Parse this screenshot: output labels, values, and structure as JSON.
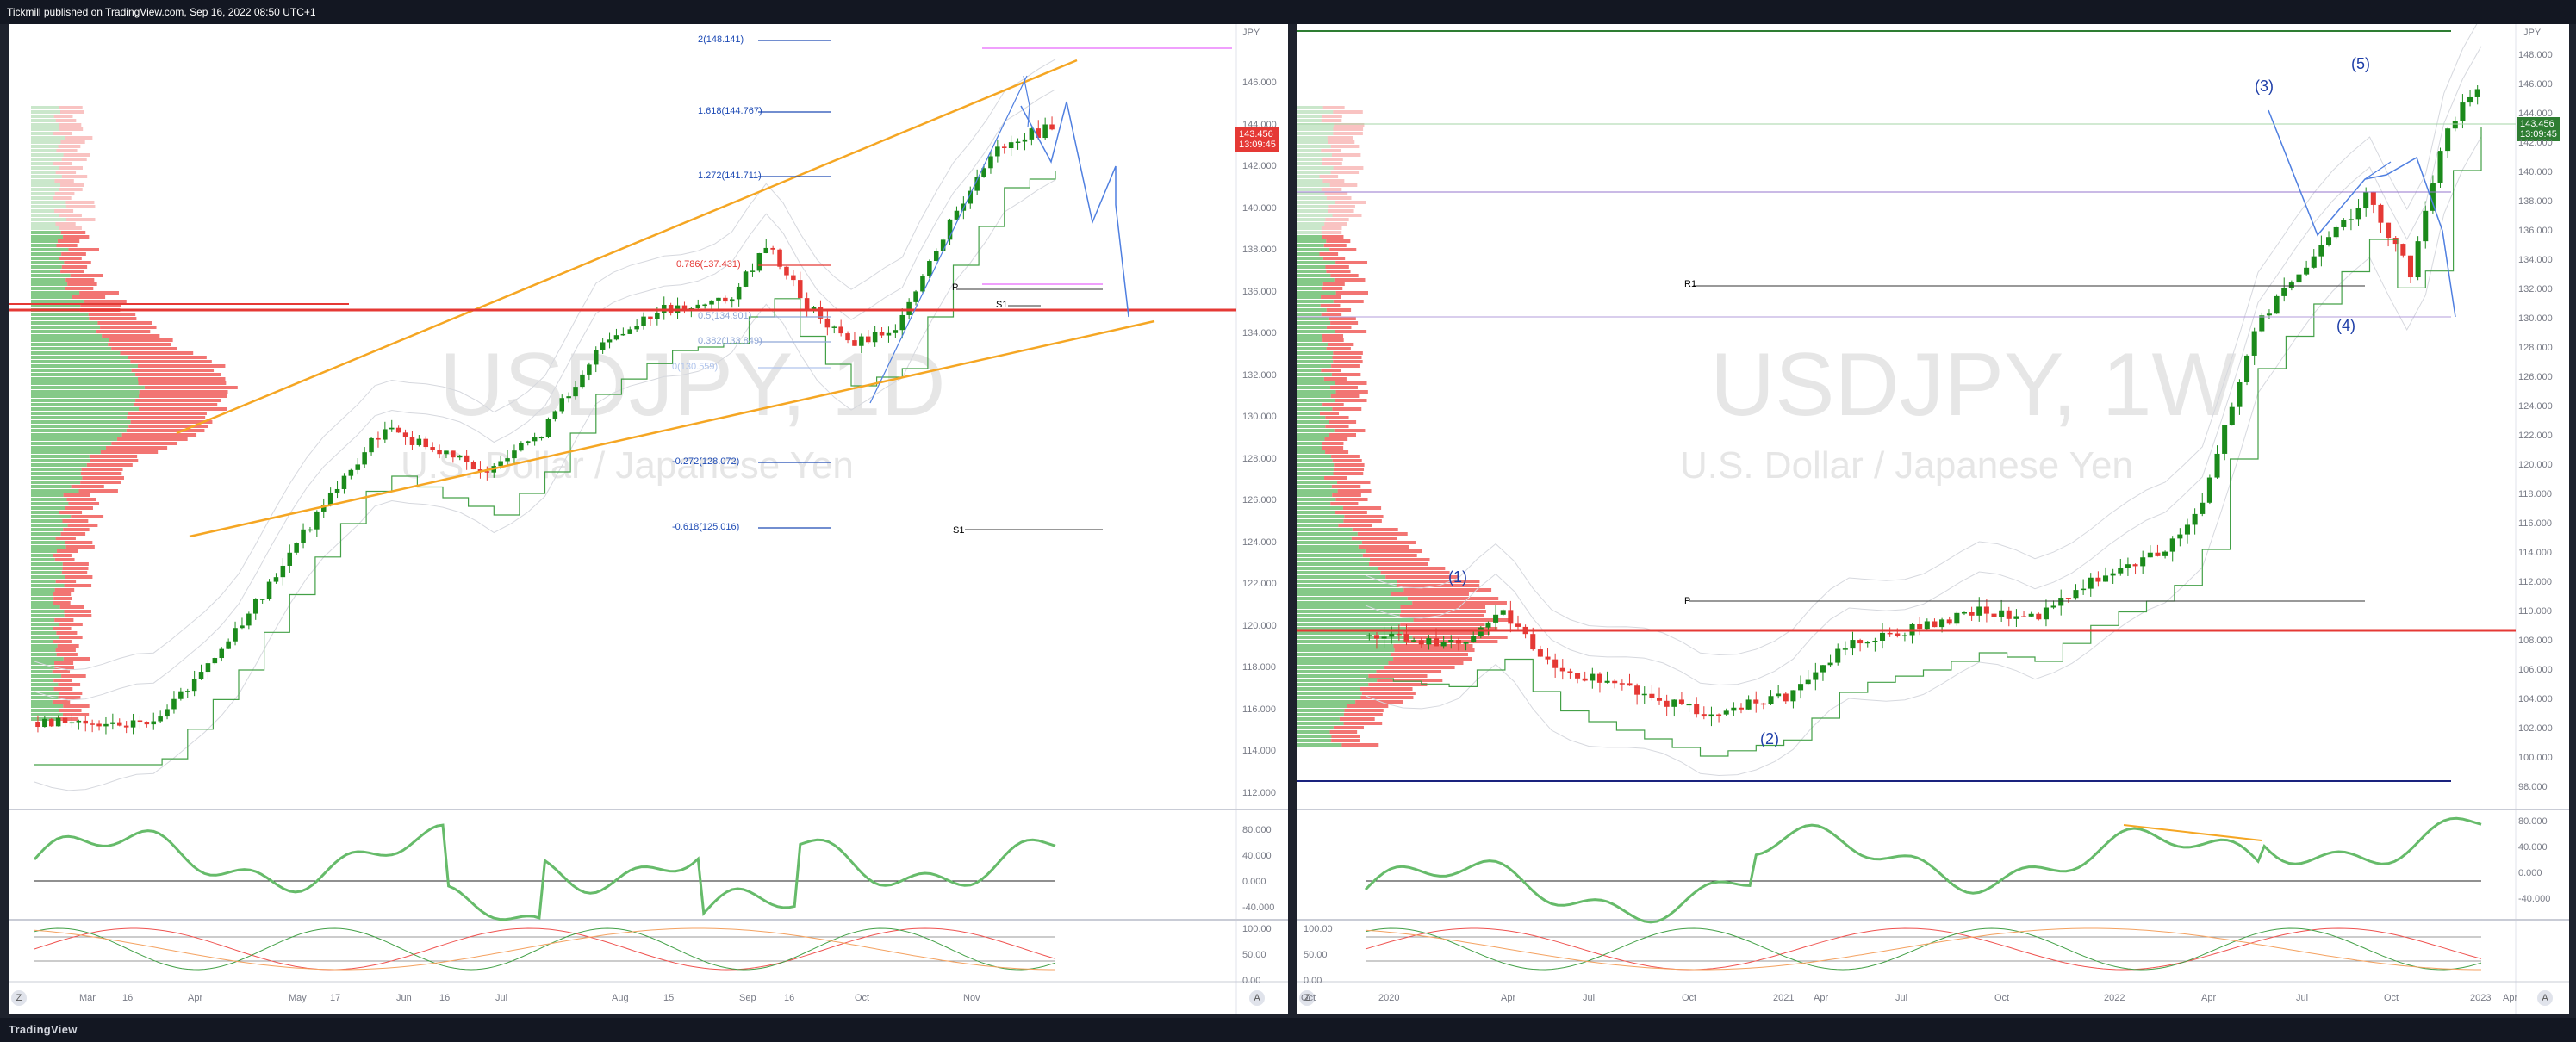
{
  "header": {
    "published": "Tickmill published on TradingView.com, Sep 16, 2022 08:50 UTC+1"
  },
  "footer": {
    "logo": "TradingView"
  },
  "left_chart": {
    "symbol_watermark": "USDJPY, 1D",
    "desc_watermark": "U.S. Dollar / Japanese Yen",
    "currency": "JPY",
    "price_tag": "143.456",
    "price_timer": "13:09:45",
    "y_ticks": [
      "146.000",
      "144.000",
      "142.000",
      "140.000",
      "138.000",
      "136.000",
      "134.000",
      "132.000",
      "130.000",
      "128.000",
      "126.000",
      "124.000",
      "122.000",
      "120.000",
      "118.000",
      "116.000",
      "114.000",
      "112.000"
    ],
    "x_ticks": [
      "Mar",
      "16",
      "Apr",
      "May",
      "17",
      "Jun",
      "16",
      "Jul",
      "Aug",
      "15",
      "Sep",
      "16",
      "Oct",
      "Nov"
    ],
    "fib_labels": [
      "2(148.141)",
      "1.618(144.767)",
      "1.272(141.711)",
      "0.786(137.431)",
      "0.5(134.901)",
      "0.382(133.849)",
      "0(130.559)",
      "-0.272(128.072)",
      "-0.618(125.016)"
    ],
    "pivot_labels": [
      "P",
      "S1",
      "S1"
    ],
    "osc1_ticks": [
      "80.000",
      "40.000",
      "0.000",
      "-40.000"
    ],
    "osc2_ticks": [
      "100.00",
      "50.00",
      "0.00"
    ],
    "z_label": "Z",
    "a_label": "A"
  },
  "right_chart": {
    "symbol_watermark": "USDJPY, 1W",
    "desc_watermark": "U.S. Dollar / Japanese Yen",
    "currency": "JPY",
    "price_tag": "143.456",
    "price_timer": "13:09:45",
    "y_ticks": [
      "148.000",
      "146.000",
      "144.000",
      "142.000",
      "140.000",
      "138.000",
      "136.000",
      "134.000",
      "132.000",
      "130.000",
      "128.000",
      "126.000",
      "124.000",
      "122.000",
      "120.000",
      "118.000",
      "116.000",
      "114.000",
      "112.000",
      "110.000",
      "108.000",
      "106.000",
      "104.000",
      "102.000",
      "100.000",
      "98.000"
    ],
    "x_ticks": [
      "Oct",
      "2020",
      "Apr",
      "Jul",
      "Oct",
      "2021",
      "Apr",
      "Jul",
      "Oct",
      "2022",
      "Apr",
      "Jul",
      "Oct",
      "2023",
      "Apr"
    ],
    "waves": [
      "(1)",
      "(2)",
      "(3)",
      "(4)",
      "(5)"
    ],
    "pivot_labels": [
      "R1",
      "P"
    ],
    "osc1_ticks": [
      "80.000",
      "40.000",
      "0.000",
      "-40.000"
    ],
    "osc2_ticks": [
      "100.00",
      "50.00",
      "0.00"
    ],
    "z_label": "Z",
    "a_label": "A"
  },
  "colors": {
    "up": "#26a69a",
    "up_bar": "#1b8a1b",
    "down": "#ef5350",
    "channel": "#f5a623",
    "projection": "#5b8def",
    "price_tag_left": "#e53935",
    "price_tag_right": "#2e7d32"
  }
}
